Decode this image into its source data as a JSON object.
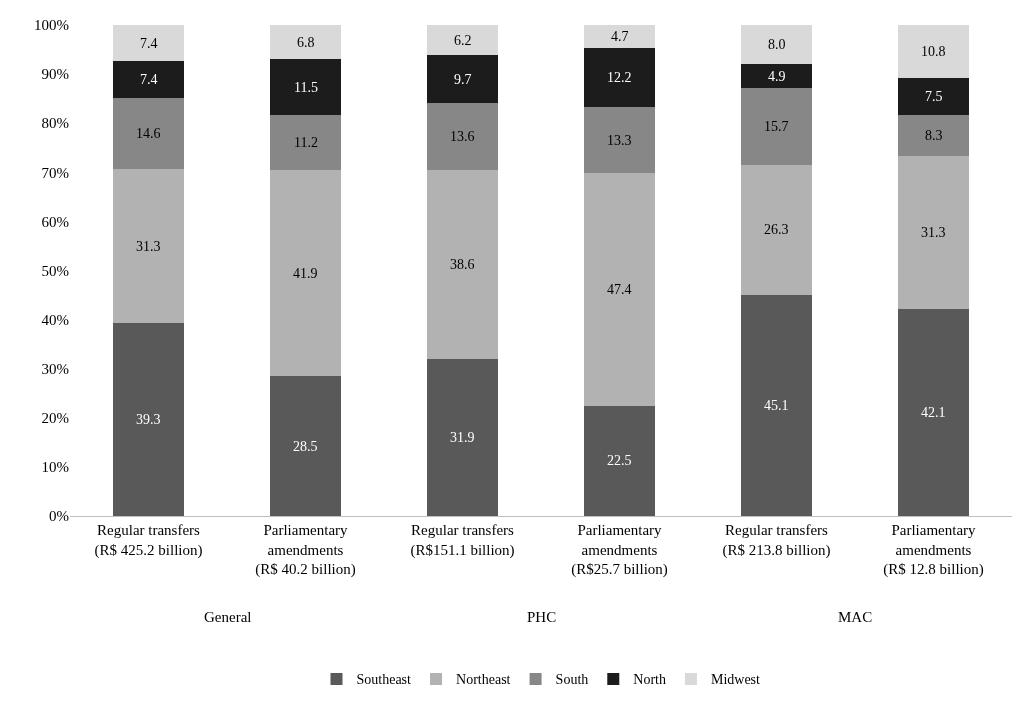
{
  "chart_data": {
    "type": "bar",
    "stacked": true,
    "categories": [
      "Regular transfers\n(R$ 425.2 billion)",
      "Parliamentary\namendments\n(R$ 40.2 billion)",
      "Regular transfers\n(R$151.1 billion)",
      "Parliamentary\namendments\n(R$25.7 billion)",
      "Regular transfers\n(R$ 213.8 billion)",
      "Parliamentary\namendments\n(R$ 12.8 billion)"
    ],
    "series": [
      {
        "name": "Southeast",
        "color": "#595959",
        "values": [
          39.3,
          28.5,
          31.9,
          22.5,
          45.1,
          42.1
        ],
        "value_labels": [
          "39.3",
          "28.5",
          "31.9",
          "22.5",
          "45.1",
          "42.1"
        ]
      },
      {
        "name": "Northeast",
        "color": "#b2b2b2",
        "values": [
          31.3,
          41.9,
          38.6,
          47.4,
          26.3,
          31.3
        ],
        "value_labels": [
          "31.3",
          "41.9",
          "38.6",
          "47.4",
          "26.3",
          "31.3"
        ]
      },
      {
        "name": "South",
        "color": "#878787",
        "values": [
          14.6,
          11.2,
          13.6,
          13.3,
          15.7,
          8.3
        ],
        "value_labels": [
          "14.6",
          "11.2",
          "13.6",
          "13.3",
          "15.7",
          "8.3"
        ]
      },
      {
        "name": "North",
        "color": "#1c1c1c",
        "values": [
          7.4,
          11.5,
          9.7,
          12.2,
          4.9,
          7.5
        ],
        "value_labels": [
          "7.4",
          "11.5",
          "9.7",
          "12.2",
          "4.9",
          "7.5"
        ]
      },
      {
        "name": "Midwest",
        "color": "#d9d9d9",
        "values": [
          7.4,
          6.8,
          6.2,
          4.7,
          8.0,
          10.8
        ],
        "value_labels": [
          "7.4",
          "6.8",
          "6.2",
          "4.7",
          "8.0",
          "10.8"
        ]
      }
    ],
    "ylim": [
      0,
      100
    ],
    "yticks": [
      {
        "value": 0,
        "label": "0%"
      },
      {
        "value": 10,
        "label": "10%"
      },
      {
        "value": 20,
        "label": "20%"
      },
      {
        "value": 30,
        "label": "30%"
      },
      {
        "value": 40,
        "label": "40%"
      },
      {
        "value": 50,
        "label": "50%"
      },
      {
        "value": 60,
        "label": "60%"
      },
      {
        "value": 70,
        "label": "70%"
      },
      {
        "value": 80,
        "label": "80%"
      },
      {
        "value": 90,
        "label": "90%"
      },
      {
        "value": 100,
        "label": "100%"
      }
    ],
    "annotations": [
      "General",
      "PHC",
      "MAC"
    ],
    "grid": false,
    "legend": "bottom"
  }
}
